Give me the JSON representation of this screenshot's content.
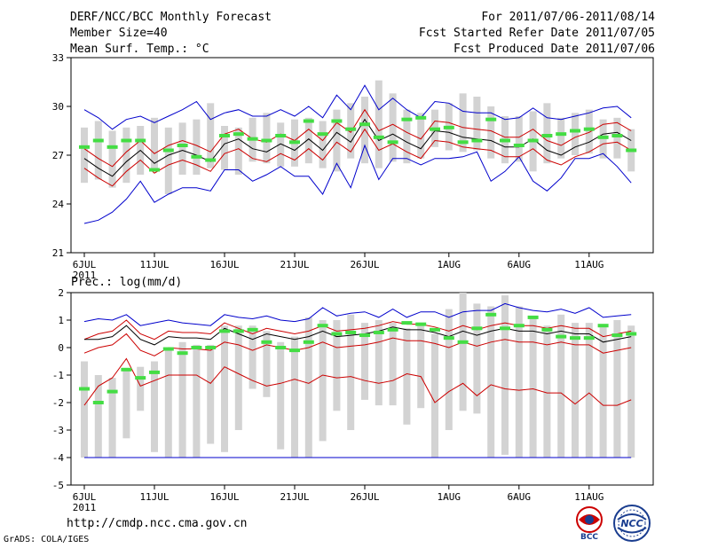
{
  "header": {
    "title": "DERF/NCC/BCC Monthly Forecast",
    "member_size": "Member Size=40",
    "variable": "Mean Surf. Temp.: °C",
    "period": "For 2011/07/06-2011/08/14",
    "started": "Fcst Started Refer Date 2011/07/05",
    "produced": "Fcst Produced Date 2011/07/06"
  },
  "footer": {
    "url": "http://cmdp.ncc.cma.gov.cn",
    "credit": "GrADS: COLA/IGES",
    "logo_left": "BCC",
    "logo_right": "NCC"
  },
  "colors": {
    "box": "#d3d3d3",
    "mean": "#000000",
    "inner": "#cc0000",
    "outer": "#0000cc",
    "marker": "#44dd44",
    "frame": "#000000"
  },
  "chart_data": [
    {
      "type": "box-ensemble",
      "title": "Mean Surf. Temp.: °C",
      "ylim": [
        21,
        33
      ],
      "yticks": [
        "21",
        "24",
        "27",
        "30",
        "33"
      ],
      "xticks": [
        "6JUL",
        "11JUL",
        "16JUL",
        "21JUL",
        "26JUL",
        "1AUG",
        "6AUG",
        "11AUG"
      ],
      "xtick_days": [
        0,
        5,
        10,
        15,
        20,
        26,
        31,
        36
      ],
      "xsub": "2011",
      "days": 40,
      "series": [
        {
          "name": "ensemble_range_low",
          "values": [
            25.3,
            25.5,
            25.0,
            25.3,
            25.8,
            26.0,
            24.6,
            25.8,
            25.8,
            26.2,
            26.1,
            25.8,
            26.6,
            26.5,
            26.3,
            26.3,
            26.5,
            26.2,
            26.0,
            26.8,
            26.5,
            26.2,
            26.6,
            26.5,
            26.8,
            27.5,
            27.3,
            27.2,
            27.3,
            26.8,
            26.5,
            26.6,
            26.0,
            26.5,
            26.8,
            27.0,
            27.1,
            26.8,
            26.8,
            26.0
          ]
        },
        {
          "name": "ensemble_range_high",
          "values": [
            28.7,
            29.1,
            28.5,
            28.7,
            28.8,
            29.3,
            28.7,
            29.0,
            29.2,
            30.2,
            28.8,
            28.7,
            29.3,
            29.6,
            29.0,
            29.2,
            29.3,
            29.1,
            29.8,
            30.2,
            30.6,
            31.6,
            30.8,
            29.8,
            29.6,
            29.8,
            30.2,
            30.8,
            30.6,
            30.0,
            29.4,
            29.4,
            29.7,
            30.2,
            29.3,
            29.6,
            29.8,
            29.2,
            29.3,
            28.6
          ]
        },
        {
          "name": "mode_marker",
          "values": [
            27.5,
            27.9,
            27.5,
            27.9,
            27.9,
            26.1,
            27.3,
            27.6,
            26.9,
            26.7,
            28.2,
            28.3,
            28.0,
            27.9,
            28.2,
            27.8,
            29.1,
            28.3,
            29.1,
            28.6,
            28.9,
            28.1,
            27.8,
            29.2,
            29.3,
            28.6,
            28.7,
            27.8,
            27.9,
            29.2,
            27.9,
            27.6,
            27.9,
            28.2,
            28.3,
            28.5,
            28.6,
            28.1,
            28.2,
            27.3
          ]
        },
        {
          "name": "mean",
          "values": [
            26.8,
            26.2,
            25.7,
            26.6,
            27.3,
            26.5,
            27.0,
            27.3,
            27.0,
            26.6,
            27.7,
            28.0,
            27.4,
            27.2,
            27.7,
            27.3,
            28.0,
            27.3,
            28.4,
            27.8,
            29.2,
            27.9,
            28.3,
            27.8,
            27.4,
            28.5,
            28.4,
            28.1,
            28.0,
            27.9,
            27.5,
            27.5,
            28.0,
            27.3,
            27.0,
            27.5,
            27.8,
            28.3,
            28.4,
            27.9
          ]
        },
        {
          "name": "inner_upper",
          "values": [
            27.4,
            26.8,
            26.3,
            27.2,
            27.9,
            27.1,
            27.6,
            27.9,
            27.6,
            27.2,
            28.3,
            28.6,
            28.0,
            27.8,
            28.3,
            27.9,
            28.6,
            27.9,
            29.0,
            28.4,
            29.8,
            28.5,
            28.9,
            28.4,
            28.0,
            29.1,
            29.0,
            28.7,
            28.6,
            28.5,
            28.1,
            28.1,
            28.6,
            27.9,
            27.6,
            28.1,
            28.4,
            28.9,
            29.0,
            28.5
          ]
        },
        {
          "name": "inner_lower",
          "values": [
            26.2,
            25.6,
            25.1,
            26.0,
            26.7,
            25.9,
            26.4,
            26.7,
            26.4,
            26.0,
            27.1,
            27.4,
            26.8,
            26.6,
            27.1,
            26.7,
            27.4,
            26.7,
            27.8,
            27.2,
            28.6,
            27.3,
            27.7,
            27.2,
            26.8,
            27.9,
            27.8,
            27.5,
            27.4,
            27.3,
            26.9,
            26.9,
            27.4,
            26.7,
            26.4,
            26.9,
            27.2,
            27.7,
            27.8,
            27.3
          ]
        },
        {
          "name": "outer_upper",
          "values": [
            29.8,
            29.3,
            28.6,
            29.2,
            29.4,
            29.0,
            29.4,
            29.8,
            30.3,
            29.2,
            29.6,
            29.8,
            29.4,
            29.4,
            29.8,
            29.4,
            30.0,
            29.3,
            30.7,
            29.8,
            31.3,
            29.8,
            30.5,
            29.8,
            29.3,
            30.3,
            30.2,
            29.7,
            29.6,
            29.6,
            29.2,
            29.3,
            29.9,
            29.3,
            29.2,
            29.4,
            29.6,
            29.9,
            30.0,
            29.3
          ]
        },
        {
          "name": "outer_lower",
          "values": [
            22.8,
            23.0,
            23.5,
            24.3,
            25.4,
            24.1,
            24.6,
            25.0,
            25.0,
            24.8,
            26.1,
            26.1,
            25.4,
            25.8,
            26.3,
            25.7,
            25.7,
            24.6,
            26.5,
            25.0,
            27.6,
            25.5,
            26.8,
            26.8,
            26.4,
            26.8,
            26.8,
            26.9,
            27.2,
            25.4,
            26.0,
            26.9,
            25.4,
            24.8,
            25.6,
            26.8,
            26.8,
            27.1,
            26.3,
            25.3
          ]
        }
      ]
    },
    {
      "type": "box-ensemble",
      "title": "Prec.: log(mm/d)",
      "ylim": [
        -5,
        2
      ],
      "yticks": [
        "-5",
        "-4",
        "-3",
        "-2",
        "-1",
        "0",
        "1",
        "2"
      ],
      "xticks": [
        "6JUL",
        "11JUL",
        "16JUL",
        "21JUL",
        "26JUL",
        "1AUG",
        "6AUG",
        "11AUG"
      ],
      "xtick_days": [
        0,
        5,
        10,
        15,
        20,
        26,
        31,
        36
      ],
      "xsub": "2011",
      "days": 40,
      "series": [
        {
          "name": "ensemble_range_low",
          "values": [
            -4.0,
            -4.0,
            -4.0,
            -3.3,
            -2.3,
            -3.8,
            -4.0,
            -4.0,
            -4.0,
            -3.5,
            -3.8,
            -3.0,
            -1.5,
            -1.8,
            -3.7,
            -4.0,
            -4.0,
            -3.4,
            -2.3,
            -3.0,
            -1.9,
            -2.1,
            -2.1,
            -2.8,
            -2.2,
            -4.0,
            -3.0,
            -2.3,
            -2.4,
            -4.0,
            -3.9,
            -4.0,
            -4.0,
            -4.0,
            -4.0,
            -4.0,
            -4.0,
            -4.0,
            -4.0,
            -4.0
          ]
        },
        {
          "name": "ensemble_range_high",
          "values": [
            -0.5,
            -1.0,
            -1.1,
            -0.8,
            -0.7,
            -0.5,
            -0.1,
            0.2,
            0.1,
            0.1,
            0.8,
            0.8,
            0.8,
            0.6,
            0.2,
            0.4,
            1.1,
            1.0,
            1.0,
            1.2,
            0.9,
            1.0,
            0.9,
            0.7,
            0.9,
            0.5,
            1.4,
            2.0,
            1.6,
            1.5,
            1.9,
            1.5,
            1.1,
            0.8,
            1.2,
            0.9,
            0.9,
            0.8,
            1.0,
            0.8
          ]
        },
        {
          "name": "mode_marker",
          "values": [
            -1.5,
            -2.0,
            -1.6,
            -0.8,
            -1.1,
            -0.9,
            -0.05,
            -0.2,
            0.0,
            0.0,
            0.6,
            0.6,
            0.65,
            0.2,
            0.0,
            -0.1,
            0.2,
            0.8,
            0.5,
            0.55,
            0.45,
            0.55,
            0.65,
            0.9,
            0.85,
            0.65,
            0.35,
            0.2,
            0.7,
            1.2,
            0.7,
            0.8,
            1.1,
            0.65,
            0.4,
            0.35,
            0.35,
            0.8,
            0.45,
            0.5
          ]
        },
        {
          "name": "mean",
          "values": [
            0.3,
            0.3,
            0.4,
            0.8,
            0.3,
            0.1,
            0.4,
            0.35,
            0.35,
            0.3,
            0.7,
            0.5,
            0.3,
            0.5,
            0.4,
            0.3,
            0.4,
            0.6,
            0.4,
            0.45,
            0.5,
            0.6,
            0.75,
            0.65,
            0.65,
            0.55,
            0.4,
            0.6,
            0.45,
            0.6,
            0.7,
            0.6,
            0.6,
            0.5,
            0.6,
            0.5,
            0.5,
            0.2,
            0.3,
            0.4
          ]
        },
        {
          "name": "inner_upper",
          "values": [
            0.3,
            0.5,
            0.6,
            1.0,
            0.5,
            0.3,
            0.6,
            0.55,
            0.55,
            0.5,
            0.9,
            0.7,
            0.5,
            0.7,
            0.6,
            0.5,
            0.6,
            0.8,
            0.6,
            0.65,
            0.7,
            0.8,
            0.95,
            0.85,
            0.85,
            0.75,
            0.6,
            0.8,
            0.65,
            0.8,
            0.9,
            0.8,
            0.8,
            0.7,
            0.8,
            0.7,
            0.7,
            0.4,
            0.5,
            0.6
          ]
        },
        {
          "name": "inner_lower",
          "values": [
            -0.2,
            0.0,
            0.1,
            0.5,
            -0.1,
            -0.3,
            0.0,
            -0.05,
            -0.05,
            -0.1,
            0.2,
            0.1,
            -0.1,
            0.1,
            0.0,
            -0.1,
            0.0,
            0.2,
            0.0,
            0.05,
            0.1,
            0.2,
            0.35,
            0.25,
            0.25,
            0.15,
            0.0,
            0.2,
            0.05,
            0.2,
            0.3,
            0.2,
            0.2,
            0.1,
            0.2,
            0.1,
            0.1,
            -0.2,
            -0.1,
            0.0
          ]
        },
        {
          "name": "lower_curve",
          "values": [
            -2.1,
            -1.4,
            -1.1,
            -0.4,
            -1.4,
            -1.2,
            -1.0,
            -1.0,
            -1.0,
            -1.3,
            -0.7,
            -0.95,
            -1.2,
            -1.4,
            -1.3,
            -1.15,
            -1.3,
            -1.0,
            -1.1,
            -1.05,
            -1.2,
            -1.3,
            -1.2,
            -0.95,
            -1.05,
            -2.0,
            -1.6,
            -1.3,
            -1.75,
            -1.35,
            -1.5,
            -1.55,
            -1.5,
            -1.65,
            -1.65,
            -2.05,
            -1.65,
            -2.1,
            -2.1,
            -1.9
          ]
        },
        {
          "name": "outer_upper",
          "values": [
            0.95,
            1.05,
            1.0,
            1.2,
            0.8,
            0.9,
            1.0,
            0.9,
            0.85,
            0.8,
            1.2,
            1.1,
            1.05,
            1.15,
            1.0,
            0.95,
            1.05,
            1.45,
            1.15,
            1.25,
            1.3,
            1.1,
            1.4,
            1.1,
            1.3,
            1.3,
            1.1,
            1.3,
            1.35,
            1.35,
            1.6,
            1.45,
            1.35,
            1.3,
            1.4,
            1.25,
            1.45,
            1.1,
            1.15,
            1.2
          ]
        },
        {
          "name": "outer_lower",
          "values": [
            -4.0,
            -4.0,
            -4.0,
            -4.0,
            -4.0,
            -4.0,
            -4.0,
            -4.0,
            -4.0,
            -4.0,
            -4.0,
            -4.0,
            -4.0,
            -4.0,
            -4.0,
            -4.0,
            -4.0,
            -4.0,
            -4.0,
            -4.0,
            -4.0,
            -4.0,
            -4.0,
            -4.0,
            -4.0,
            -4.0,
            -4.0,
            -4.0,
            -4.0,
            -4.0,
            -4.0,
            -4.0,
            -4.0,
            -4.0,
            -4.0,
            -4.0,
            -4.0,
            -4.0,
            -4.0,
            -4.0
          ]
        }
      ]
    }
  ]
}
